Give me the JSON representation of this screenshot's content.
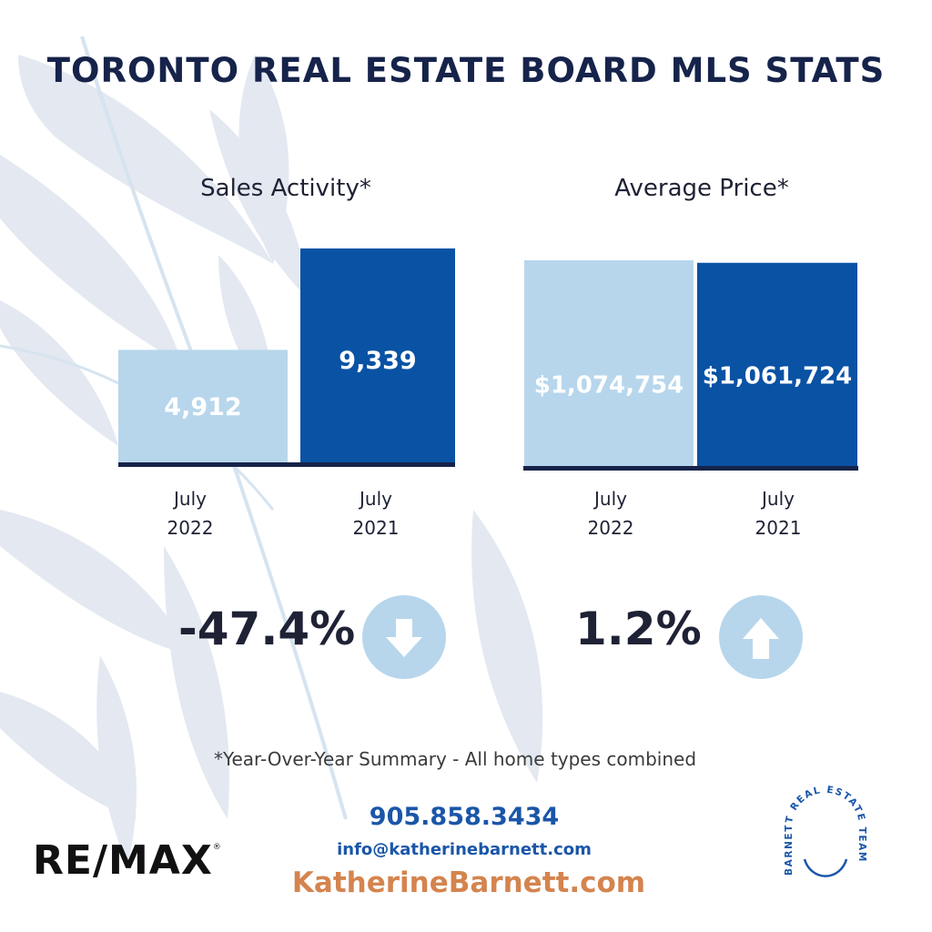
{
  "title": "TORONTO REAL ESTATE BOARD MLS STATS",
  "chart_data": [
    {
      "type": "bar",
      "title": "Sales Activity*",
      "categories": [
        [
          "July",
          "2022"
        ],
        [
          "July",
          "2021"
        ]
      ],
      "values": [
        4912,
        9339
      ],
      "value_labels": [
        "4,912",
        "9,339"
      ],
      "colors": [
        "#b7d6ec",
        "#0952a4"
      ],
      "change": "-47.4%",
      "direction": "down"
    },
    {
      "type": "bar",
      "title": "Average Price*",
      "categories": [
        [
          "July",
          "2022"
        ],
        [
          "July",
          "2021"
        ]
      ],
      "values": [
        1074754,
        1061724
      ],
      "value_labels": [
        "$1,074,754",
        "$1,061,724"
      ],
      "colors": [
        "#b7d6ec",
        "#0952a4"
      ],
      "change": "1.2%",
      "direction": "up"
    }
  ],
  "footnote": "*Year-Over-Year Summary - All home types combined",
  "contact": {
    "phone": "905.858.3434",
    "email": "info@katherinebarnett.com",
    "website": "KatherineBarnett.com"
  },
  "brand": {
    "remax": "RE/MAX",
    "remax_mark": "®",
    "team_logo_text": "BARNETT REAL ESTATE TEAM"
  },
  "icons": {
    "down": "arrow-down-icon",
    "up": "arrow-up-icon"
  }
}
